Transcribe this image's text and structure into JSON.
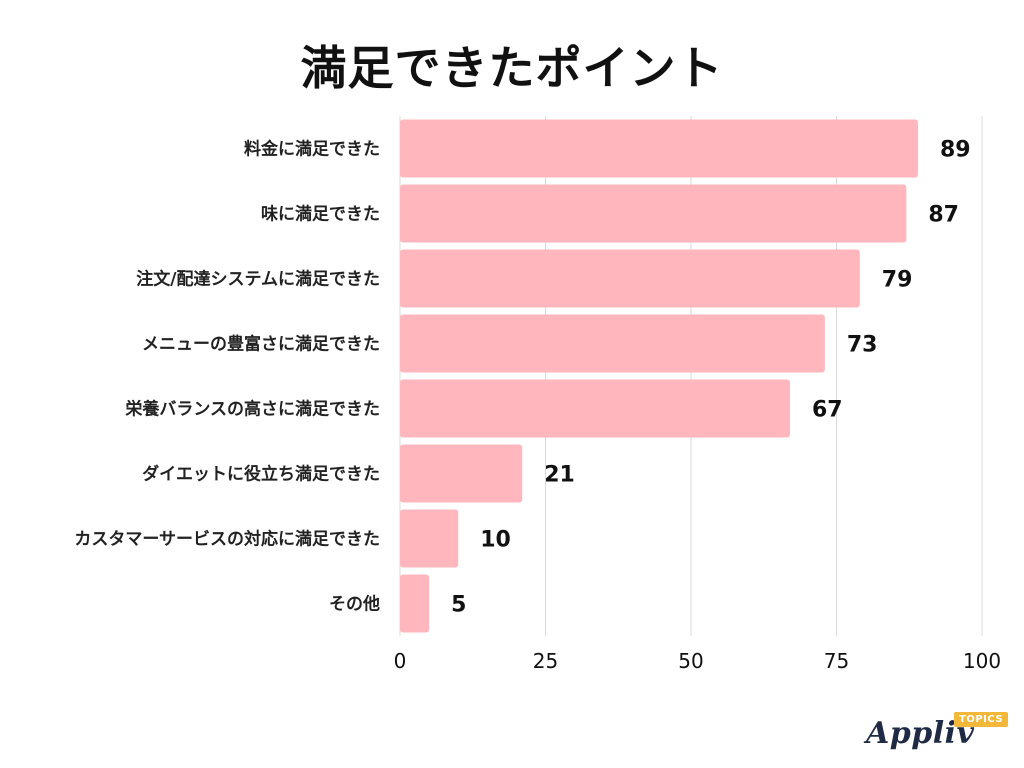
{
  "title": "満足できたポイント",
  "chart_data": {
    "type": "bar",
    "orientation": "horizontal",
    "title": "満足できたポイント",
    "categories": [
      "料金に満足できた",
      "味に満足できた",
      "注文/配達システムに満足できた",
      "メニューの豊富さに満足できた",
      "栄養バランスの高さに満足できた",
      "ダイエットに役立ち満足できた",
      "カスタマーサービスの対応に満足できた",
      "その他"
    ],
    "values": [
      89,
      87,
      79,
      73,
      67,
      21,
      10,
      5
    ],
    "xlim": [
      0,
      100
    ],
    "ticks": [
      0,
      25,
      50,
      75,
      100
    ],
    "grid": true,
    "bar_color": "#ffb6bc",
    "grid_color": "#d9d9d9"
  },
  "logo": {
    "text": "Appliv",
    "badge": "TOPICS"
  }
}
